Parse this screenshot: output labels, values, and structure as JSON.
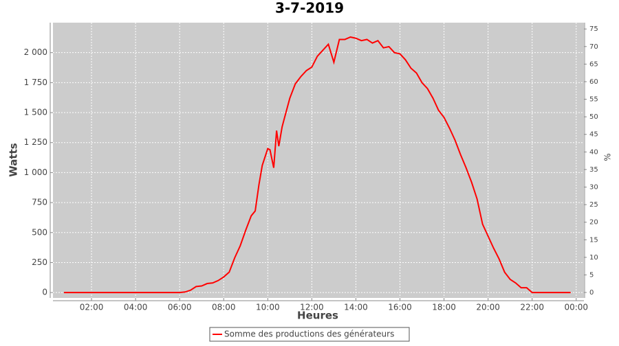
{
  "chart_data": {
    "type": "line",
    "title": "3-7-2019",
    "x_label": "Heures",
    "y_label": "Watts",
    "y2_label": "%",
    "x": [
      0.75,
      2,
      3,
      4,
      5,
      5.5,
      6,
      6.25,
      6.5,
      6.75,
      7,
      7.25,
      7.5,
      7.75,
      8,
      8.25,
      8.5,
      8.75,
      9,
      9.25,
      9.43,
      9.6,
      9.75,
      10,
      10.1,
      10.27,
      10.4,
      10.5,
      10.65,
      10.75,
      11,
      11.25,
      11.5,
      11.75,
      12,
      12.25,
      12.5,
      12.75,
      13,
      13.25,
      13.5,
      13.75,
      14,
      14.25,
      14.5,
      14.75,
      15,
      15.25,
      15.5,
      15.75,
      16,
      16.25,
      16.5,
      16.75,
      17,
      17.25,
      17.5,
      17.75,
      18,
      18.25,
      18.5,
      18.75,
      19,
      19.25,
      19.5,
      19.75,
      20,
      20.25,
      20.5,
      20.75,
      21,
      21.25,
      21.5,
      21.75,
      22,
      23,
      23.75
    ],
    "series": [
      {
        "name": "Somme des productions des  générateurs",
        "color": "#ff0000",
        "values": [
          0,
          0,
          0,
          0,
          0,
          0,
          0,
          5,
          20,
          50,
          55,
          75,
          80,
          100,
          130,
          170,
          290,
          390,
          520,
          640,
          680,
          900,
          1060,
          1200,
          1190,
          1040,
          1350,
          1220,
          1380,
          1450,
          1620,
          1740,
          1800,
          1850,
          1880,
          1970,
          2020,
          2070,
          1920,
          2110,
          2110,
          2130,
          2120,
          2100,
          2110,
          2080,
          2100,
          2040,
          2050,
          2000,
          1990,
          1940,
          1870,
          1830,
          1750,
          1700,
          1620,
          1520,
          1460,
          1370,
          1270,
          1150,
          1040,
          920,
          780,
          570,
          470,
          370,
          280,
          170,
          110,
          80,
          40,
          40,
          0,
          0,
          0
        ]
      }
    ],
    "xlim": [
      0.25,
      24.35
    ],
    "ylim": [
      -45,
      2250
    ],
    "y2lim": [
      -1.56,
      76.8
    ],
    "xticks": [
      {
        "value": 2,
        "label": "02:00"
      },
      {
        "value": 4,
        "label": "04:00"
      },
      {
        "value": 6,
        "label": "06:00"
      },
      {
        "value": 8,
        "label": "08:00"
      },
      {
        "value": 10,
        "label": "10:00"
      },
      {
        "value": 12,
        "label": "12:00"
      },
      {
        "value": 14,
        "label": "14:00"
      },
      {
        "value": 16,
        "label": "16:00"
      },
      {
        "value": 18,
        "label": "18:00"
      },
      {
        "value": 20,
        "label": "20:00"
      },
      {
        "value": 22,
        "label": "22:00"
      },
      {
        "value": 24,
        "label": "00:00"
      }
    ],
    "yticks": [
      0,
      250,
      500,
      750,
      {
        "value": 1000,
        "label": "1 000"
      },
      {
        "value": 1250,
        "label": "1 250"
      },
      {
        "value": 1500,
        "label": "1 500"
      },
      {
        "value": 1750,
        "label": "1 750"
      },
      {
        "value": 2000,
        "label": "2 000"
      }
    ],
    "y2ticks": [
      0,
      5,
      10,
      15,
      20,
      25,
      30,
      35,
      40,
      45,
      50,
      55,
      60,
      65,
      70,
      75
    ],
    "grid": true
  }
}
